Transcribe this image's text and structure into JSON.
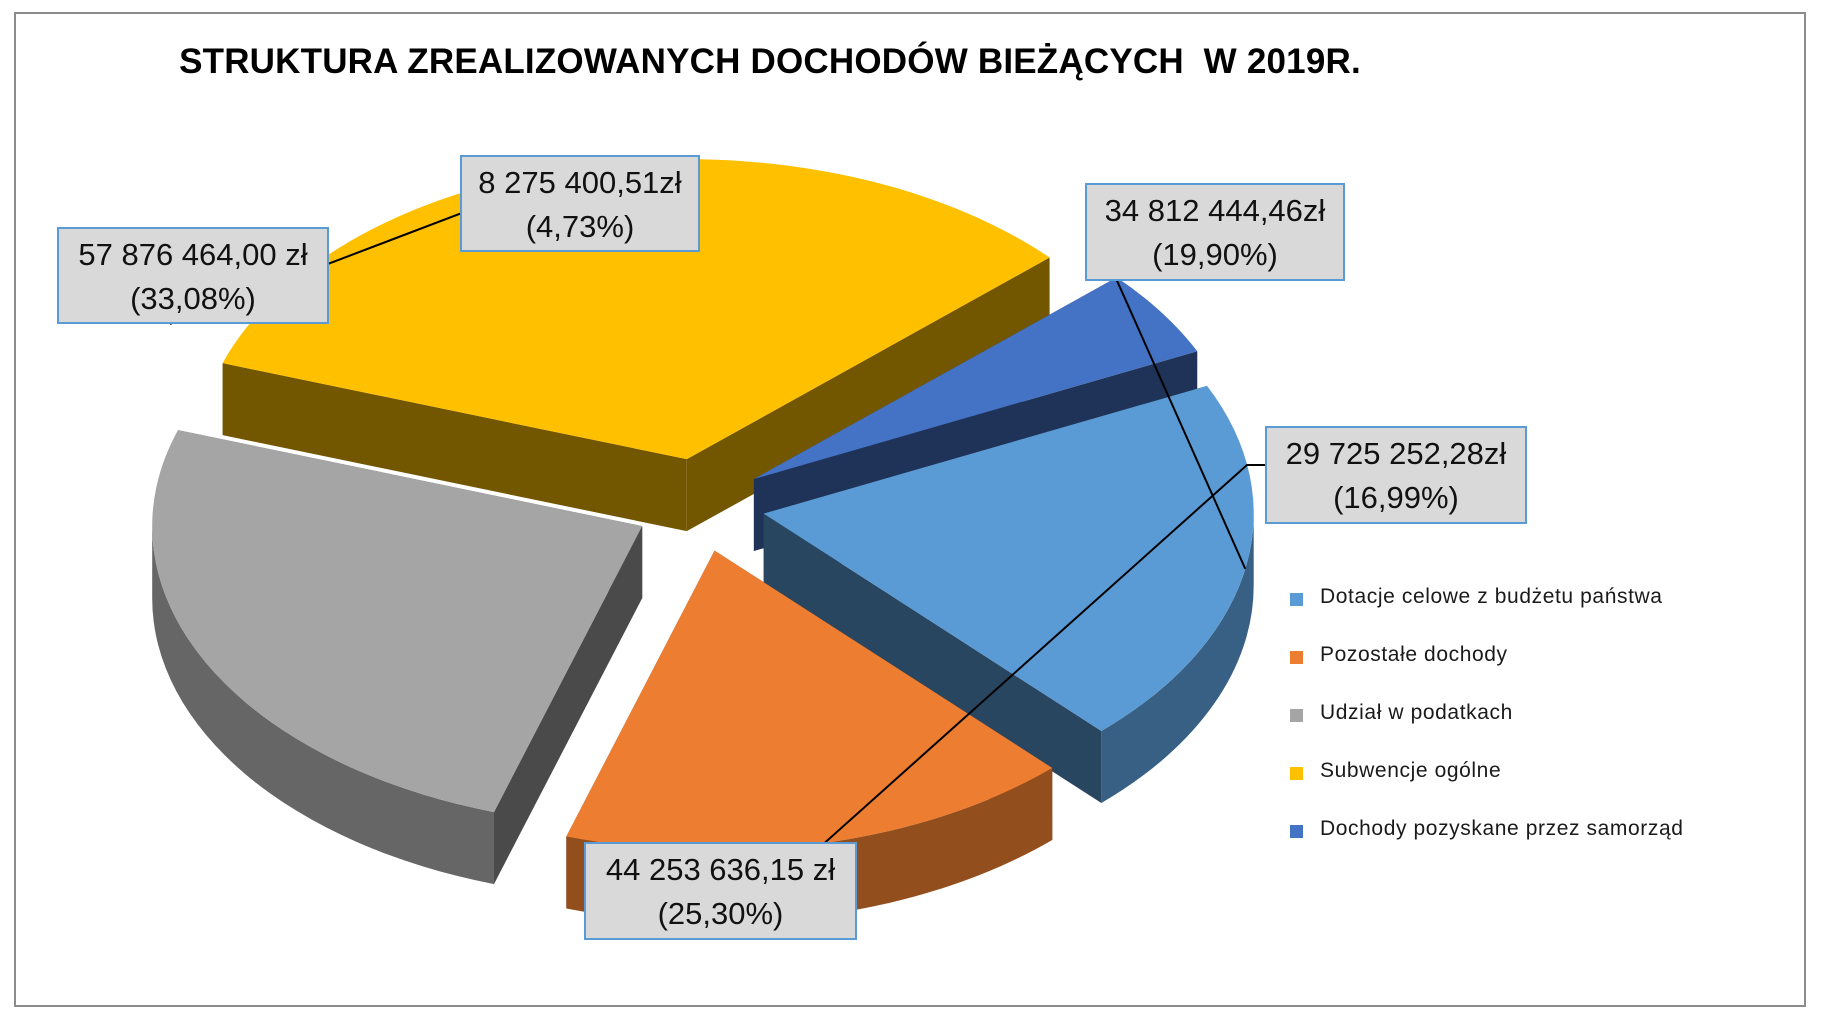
{
  "chart_data": {
    "type": "pie",
    "title": "STRUKTURA ZREALIZOWANYCH DOCHODÓW BIEŻĄCYCH  W 2019R.",
    "legend_position": "right",
    "style": "3d-exploded",
    "slices": [
      {
        "name": "Dotacje celowe z budżetu państwa",
        "value": 34812444.46,
        "value_label": "34 812 444,46zł",
        "percent": 19.9,
        "percent_label": "(19,90%)",
        "color": "#5b9bd5"
      },
      {
        "name": "Pozostałe dochody",
        "value": 29725252.28,
        "value_label": "29 725 252,28zł",
        "percent": 16.99,
        "percent_label": "(16,99%)",
        "color": "#ed7d31"
      },
      {
        "name": "Udział w podatkach",
        "value": 44253636.15,
        "value_label": "44 253 636,15 zł",
        "percent": 25.3,
        "percent_label": "(25,30%)",
        "color": "#a5a5a5"
      },
      {
        "name": "Subwencje ogólne",
        "value": 57876464.0,
        "value_label": "57 876 464,00 zł",
        "percent": 33.08,
        "percent_label": "(33,08%)",
        "color": "#ffc000"
      },
      {
        "name": "Dochody pozyskane przez samorząd",
        "value": 8275400.51,
        "value_label": "8 275 400,51zł",
        "percent": 4.73,
        "percent_label": "(4,73%)",
        "color": "#4472c4"
      }
    ]
  }
}
